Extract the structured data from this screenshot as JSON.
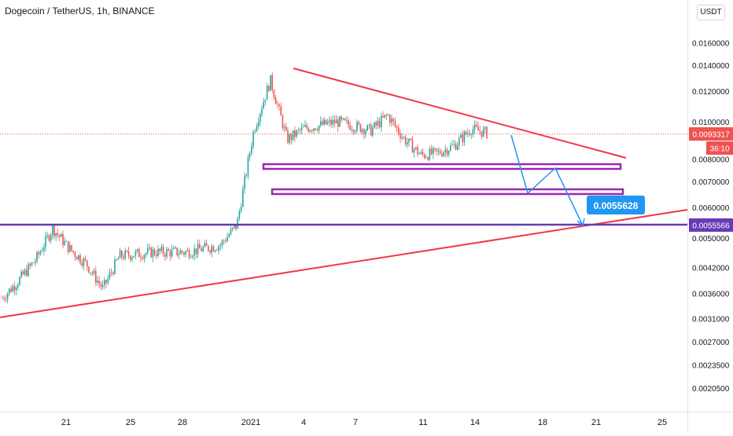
{
  "header": {
    "symbol_title": "Dogecoin / TetherUS, 1h, BINANCE",
    "currency": "USDT"
  },
  "colors": {
    "up": "#26a69a",
    "down": "#ef5350",
    "trendline": "#f23645",
    "channel": "#9c27b0",
    "horizontal": "#673ab7",
    "projection": "#2196f3",
    "axis_text": "#131722"
  },
  "price_badges": {
    "current_price": "0.0093317",
    "countdown": "36:10",
    "level": "0.0055566",
    "target": "0.0055628"
  },
  "chart_data": {
    "type": "candlestick",
    "title": "Dogecoin / TetherUS, 1h, BINANCE",
    "y_scale": "log",
    "ylim": [
      0.0019,
      0.0188
    ],
    "y_ticks": [
      "0.0160000",
      "0.0140000",
      "0.0120000",
      "0.0100000",
      "0.0080000",
      "0.0070000",
      "0.0060000",
      "0.0050000",
      "0.0042000",
      "0.0036000",
      "0.0031000",
      "0.0027000",
      "0.0023500",
      "0.0020500"
    ],
    "x_ticks": [
      "21",
      "25",
      "28",
      "2021",
      "4",
      "7",
      "11",
      "14",
      "18",
      "21",
      "25"
    ],
    "price_path": [
      [
        "Dec 18",
        0.0035
      ],
      [
        "Dec 19",
        0.0039
      ],
      [
        "Dec 20",
        0.0044
      ],
      [
        "Dec 21",
        0.0053
      ],
      [
        "Dec 22",
        0.0047
      ],
      [
        "Dec 23",
        0.0043
      ],
      [
        "Dec 24",
        0.0037
      ],
      [
        "Dec 25",
        0.0045
      ],
      [
        "Dec 27",
        0.0046
      ],
      [
        "Dec 29",
        0.0046
      ],
      [
        "Dec 31",
        0.0048
      ],
      [
        "Jan 1",
        0.0054
      ],
      [
        "Jan 2",
        0.0095
      ],
      [
        "Jan 3",
        0.0128
      ],
      [
        "Jan 4",
        0.009
      ],
      [
        "Jan 5",
        0.0096
      ],
      [
        "Jan 7",
        0.01
      ],
      [
        "Jan 9",
        0.0095
      ],
      [
        "Jan 10",
        0.0104
      ],
      [
        "Jan 11",
        0.009
      ],
      [
        "Jan 12",
        0.0082
      ],
      [
        "Jan 13",
        0.0083
      ],
      [
        "Jan 14",
        0.0087
      ],
      [
        "Jan 15",
        0.0096
      ],
      [
        "Jan 16",
        0.0093317
      ]
    ],
    "annotations": {
      "descending_trendline": "red",
      "ascending_support": "red",
      "support_zones": [
        "0.0076",
        "0.0066"
      ],
      "horizontal_level": "0.0055566",
      "projected_target": "0.0055628"
    }
  }
}
